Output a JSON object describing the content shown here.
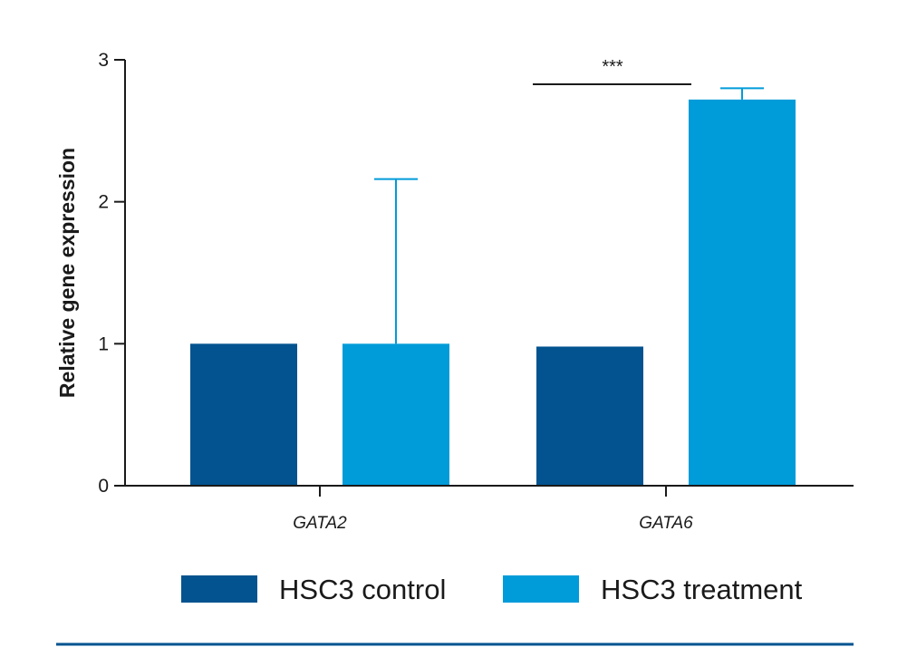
{
  "chart_data": {
    "type": "bar",
    "title": "",
    "xlabel": "",
    "ylabel": "Relative gene expression",
    "ylim": [
      0,
      3
    ],
    "yticks": [
      0,
      1,
      2,
      3
    ],
    "ytick_labels": [
      "0",
      "1",
      "2",
      "3"
    ],
    "grid": false,
    "categories": [
      "GATA2",
      "GATA6"
    ],
    "series": [
      {
        "name": "HSC3 control",
        "color": "#02538f",
        "values": [
          1.0,
          0.98
        ],
        "error_upper": [
          null,
          null
        ]
      },
      {
        "name": "HSC3 treatment",
        "color": "#009bd9",
        "values": [
          1.0,
          2.72
        ],
        "error_upper": [
          2.16,
          2.8
        ]
      }
    ],
    "annotations": [
      {
        "text": "***",
        "category": "GATA6",
        "between": "HSC3 control vs HSC3 treatment"
      }
    ],
    "legend": {
      "placement": "bottom",
      "entries": [
        "HSC3 control",
        "HSC3 treatment"
      ]
    },
    "footer_rule_color": "#02538f"
  }
}
